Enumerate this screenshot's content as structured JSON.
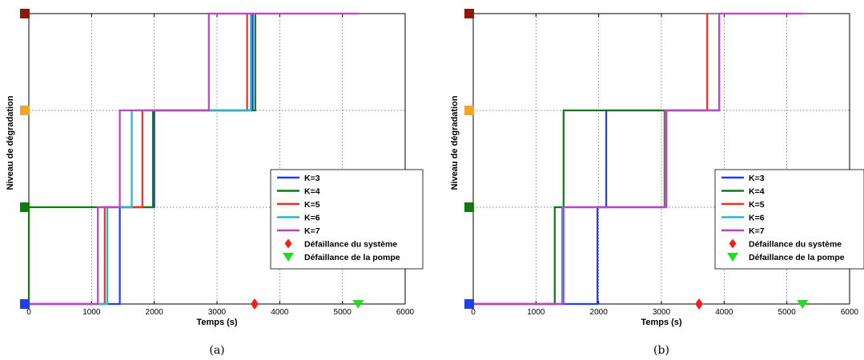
{
  "chart_data": [
    {
      "type": "line",
      "caption": "(a)",
      "xlabel": "Temps (s)",
      "ylabel": "Niveau de dégradation",
      "xlim": [
        0,
        6000
      ],
      "ylim": [
        0,
        3
      ],
      "xticks": [
        0,
        1000,
        2000,
        3000,
        4000,
        5000,
        6000
      ],
      "grid": true,
      "legend_position": "right",
      "level_colors": [
        "#1f3fe8",
        "#0f7a0f",
        "#f2a32a",
        "#8b1a0a"
      ],
      "series": [
        {
          "name": "K=3",
          "color": "#1f3fe8",
          "x": [
            0,
            1450,
            1450,
            2000,
            2000,
            3570,
            3570
          ],
          "y": [
            0,
            0,
            1,
            1,
            2,
            2,
            3
          ]
        },
        {
          "name": "K=4",
          "color": "#0f7a0f",
          "x": [
            0,
            0,
            1240,
            1240,
            1980,
            1980,
            3610,
            3610
          ],
          "y": [
            0,
            1,
            1,
            1,
            1,
            2,
            2,
            3
          ]
        },
        {
          "name": "K=5",
          "color": "#ee2f1f",
          "x": [
            0,
            1210,
            1210,
            1810,
            1810,
            3480,
            3480
          ],
          "y": [
            0,
            0,
            1,
            1,
            2,
            2,
            3
          ]
        },
        {
          "name": "K=6",
          "color": "#22b8c8",
          "x": [
            0,
            1250,
            1250,
            1640,
            1640,
            3540,
            3540
          ],
          "y": [
            0,
            0,
            1,
            1,
            2,
            2,
            3
          ]
        },
        {
          "name": "K=7",
          "color": "#c040c8",
          "x": [
            0,
            1100,
            1100,
            1450,
            1450,
            2870,
            2870,
            5250
          ],
          "y": [
            0,
            0,
            1,
            1,
            2,
            2,
            3,
            3
          ]
        }
      ],
      "markers": [
        {
          "name": "Défaillance du système",
          "shape": "diamond",
          "color": "#ee2020",
          "x": 3600,
          "y": 0
        },
        {
          "name": "Défaillance de la pompe",
          "shape": "triangle-down",
          "color": "#22dd22",
          "x": 5250,
          "y": 0
        }
      ]
    },
    {
      "type": "line",
      "caption": "(b)",
      "xlabel": "Temps (s)",
      "ylabel": "Niveau de dégradation",
      "xlim": [
        0,
        6000
      ],
      "ylim": [
        0,
        3
      ],
      "xticks": [
        0,
        1000,
        2000,
        3000,
        4000,
        5000,
        6000
      ],
      "grid": true,
      "legend_position": "right",
      "level_colors": [
        "#1f3fe8",
        "#0f7a0f",
        "#f2a32a",
        "#8b1a0a"
      ],
      "series": [
        {
          "name": "K=3",
          "color": "#1f3fe8",
          "x": [
            0,
            1980,
            1980,
            2120,
            2120,
            3070,
            3070,
            3920,
            3920
          ],
          "y": [
            0,
            0,
            1,
            1,
            2,
            2,
            2,
            2,
            3
          ]
        },
        {
          "name": "K=4",
          "color": "#0f7a0f",
          "x": [
            0,
            1300,
            1300,
            1440,
            1440,
            3060,
            3060
          ],
          "y": [
            0,
            0,
            1,
            1,
            2,
            2,
            2
          ]
        },
        {
          "name": "K=5",
          "color": "#ee2f1f",
          "x": [
            0,
            1420,
            1420,
            3050,
            3050,
            3730,
            3730
          ],
          "y": [
            0,
            0,
            1,
            1,
            2,
            2,
            3
          ]
        },
        {
          "name": "K=6",
          "color": "#22b8c8",
          "x": [
            0,
            1430,
            1430,
            3070,
            3070,
            3920,
            3920
          ],
          "y": [
            0,
            0,
            1,
            1,
            2,
            2,
            3
          ]
        },
        {
          "name": "K=7",
          "color": "#c040c8",
          "x": [
            0,
            1440,
            1440,
            3080,
            3080,
            3920,
            3920,
            5250
          ],
          "y": [
            0,
            0,
            1,
            1,
            2,
            2,
            3,
            3
          ]
        }
      ],
      "markers": [
        {
          "name": "Défaillance du système",
          "shape": "diamond",
          "color": "#ee2020",
          "x": 3600,
          "y": 0
        },
        {
          "name": "Défaillance de la pompe",
          "shape": "triangle-down",
          "color": "#22dd22",
          "x": 5250,
          "y": 0
        }
      ]
    }
  ]
}
